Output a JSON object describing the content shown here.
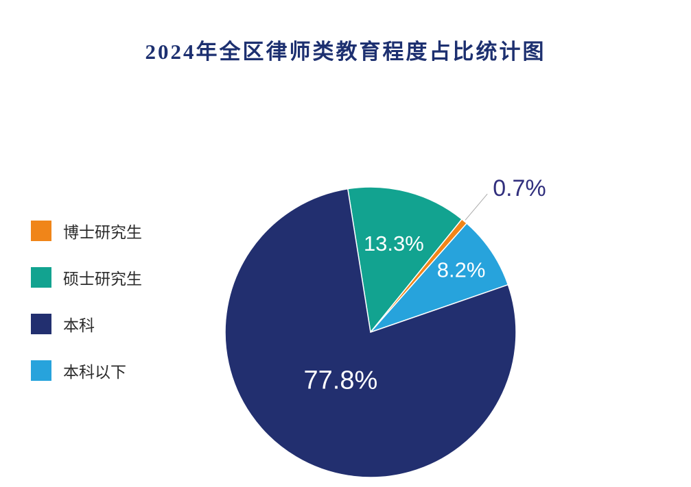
{
  "title": "2024年全区律师类教育程度占比统计图",
  "chart_data": {
    "type": "pie",
    "title": "2024年全区律师类教育程度占比统计图",
    "unit": "%",
    "slices": [
      {
        "name": "硕士研究生",
        "value": 13.3,
        "label": "13.3%",
        "color": "#12A390",
        "label_style": "inside"
      },
      {
        "name": "博士研究生",
        "value": 0.7,
        "label": "0.7%",
        "color": "#F08519",
        "label_style": "outside"
      },
      {
        "name": "本科以下",
        "value": 8.2,
        "label": "8.2%",
        "color": "#27A3DC",
        "label_style": "inside"
      },
      {
        "name": "本科",
        "value": 77.8,
        "label": "77.8%",
        "color": "#222F6F",
        "label_style": "inside"
      }
    ],
    "start_angle_clockwise_from_top": -9,
    "legend_position": "left",
    "inside_label_color": "#FFFFFF",
    "outside_label_color": "#312F7D",
    "leader_line_color": "#AAAAAA",
    "title_color": "#1D3070",
    "background_color": "#FFFFFF"
  },
  "legend": {
    "items": [
      {
        "label": "博士研究生",
        "color": "#F08519"
      },
      {
        "label": "硕士研究生",
        "color": "#12A390"
      },
      {
        "label": "本科",
        "color": "#222F6F"
      },
      {
        "label": "本科以下",
        "color": "#27A3DC"
      }
    ]
  }
}
